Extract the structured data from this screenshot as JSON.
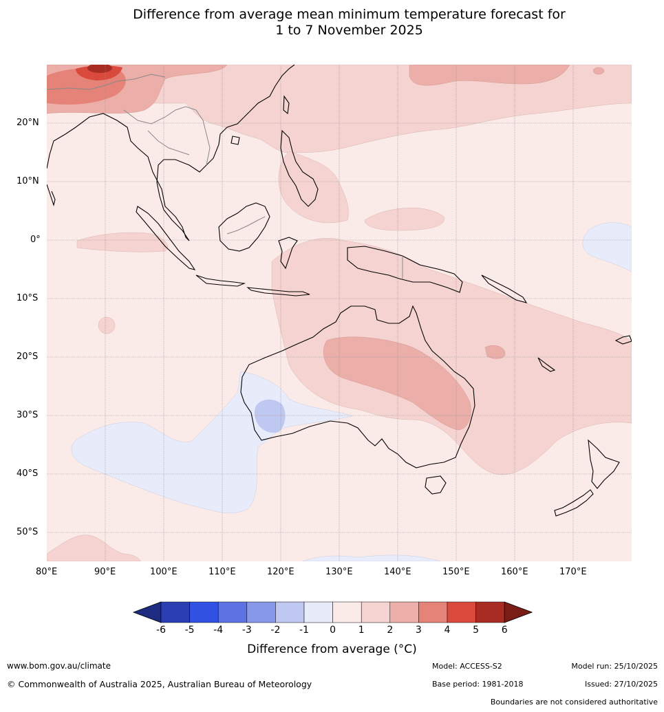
{
  "title": {
    "line1": "Difference from average mean minimum temperature forecast for",
    "line2": "1 to 7 November 2025"
  },
  "map": {
    "lat_labels": [
      "20°N",
      "10°N",
      "0°",
      "10°S",
      "20°S",
      "30°S",
      "40°S",
      "50°S"
    ],
    "lon_labels": [
      "80°E",
      "90°E",
      "100°E",
      "110°E",
      "120°E",
      "130°E",
      "140°E",
      "150°E",
      "160°E",
      "170°E"
    ],
    "colors": {
      "anom_0_1": "#fbebe8",
      "anom_1_2": "#f4d3d0",
      "anom_2_3": "#ecaea9",
      "anom_3_4": "#e68379",
      "anom_4_5": "#d94a3d",
      "anom_5_6": "#a92c23",
      "anom_m1_0": "#e8ecfa",
      "anom_m2_m1": "#bfc8f1",
      "coast": "#000000",
      "boundary": "#888888",
      "grid": "#9a8f8f"
    }
  },
  "colorbar": {
    "ticks": [
      "-6",
      "-5",
      "-4",
      "-3",
      "-2",
      "-1",
      "0",
      "1",
      "2",
      "3",
      "4",
      "5",
      "6"
    ],
    "colors": [
      "#1d2b80",
      "#2a3fb2",
      "#3051e2",
      "#5d73e4",
      "#8898e9",
      "#bfc8f1",
      "#e8ecfa",
      "#fbebe8",
      "#f4d3d0",
      "#ecaea9",
      "#e68379",
      "#d94a3d",
      "#a92c23",
      "#7a1d17"
    ],
    "label": "Difference from average (°C)"
  },
  "footer": {
    "website": "www.bom.gov.au/climate",
    "copyright": "© Commonwealth of Australia 2025, Australian Bureau of Meteorology",
    "model": "Model: ACCESS-S2",
    "base_period": "Base period: 1981-2018",
    "model_run": "Model run: 25/10/2025",
    "issued": "Issued: 27/10/2025",
    "disclaimer": "Boundaries are not considered authoritative"
  }
}
